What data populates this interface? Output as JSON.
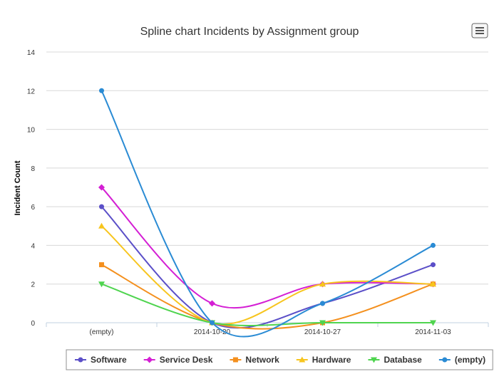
{
  "chart_data": {
    "type": "line",
    "title": "Spline chart Incidents by Assignment group",
    "xlabel": "",
    "ylabel": "Incident Count",
    "categories": [
      "(empty)",
      "2014-10-20",
      "2014-10-27",
      "2014-11-03"
    ],
    "ylim": [
      0,
      14
    ],
    "yticks": [
      0,
      2,
      4,
      6,
      8,
      10,
      12,
      14
    ],
    "grid": true,
    "legend_position": "bottom",
    "series": [
      {
        "name": "Software",
        "values": [
          6,
          0,
          1,
          3
        ],
        "color": "#5b4fc8",
        "marker": "circle"
      },
      {
        "name": "Service Desk",
        "values": [
          7,
          1,
          2,
          2
        ],
        "color": "#d41fd4",
        "marker": "diamond"
      },
      {
        "name": "Network",
        "values": [
          3,
          0,
          0,
          2
        ],
        "color": "#f4901e",
        "marker": "square"
      },
      {
        "name": "Hardware",
        "values": [
          5,
          0,
          2,
          2
        ],
        "color": "#f7c51e",
        "marker": "triangle"
      },
      {
        "name": "Database",
        "values": [
          2,
          0,
          0,
          0
        ],
        "color": "#4fd44f",
        "marker": "triangle-down"
      },
      {
        "name": "(empty)",
        "values": [
          12,
          0,
          1,
          4
        ],
        "color": "#2a8bd4",
        "marker": "circle"
      }
    ]
  }
}
